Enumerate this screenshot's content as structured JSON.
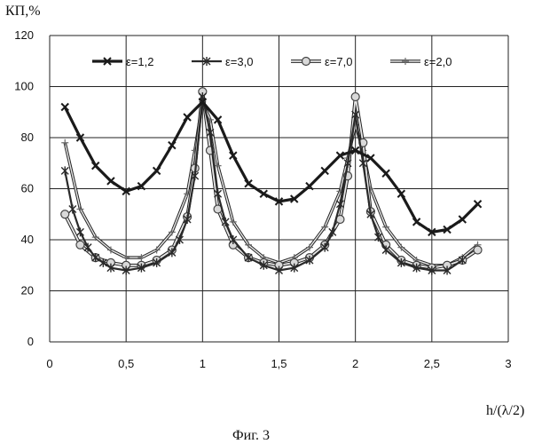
{
  "chart_data": {
    "type": "line",
    "ylabel": "КП,%",
    "xlabel": "h/(λ/2)",
    "caption": "Фиг. 3",
    "xlim": [
      0,
      3
    ],
    "ylim": [
      0,
      120
    ],
    "x_ticks": [
      0,
      0.5,
      1,
      1.5,
      2,
      2.5,
      3
    ],
    "x_tick_labels": [
      "0",
      "0,5",
      "1",
      "1,5",
      "2",
      "2,5",
      "3"
    ],
    "y_ticks": [
      0,
      20,
      40,
      60,
      80,
      100,
      120
    ],
    "y_tick_labels": [
      "0",
      "20",
      "40",
      "60",
      "80",
      "100",
      "120"
    ],
    "grid": true,
    "legend_position": "top",
    "series": [
      {
        "name": "ε=1,2",
        "marker": "x",
        "color": "#1a1a1a",
        "x": [
          0.1,
          0.2,
          0.3,
          0.4,
          0.5,
          0.6,
          0.7,
          0.8,
          0.9,
          1.0,
          1.1,
          1.2,
          1.3,
          1.4,
          1.5,
          1.6,
          1.7,
          1.8,
          1.9,
          2.0,
          2.1,
          2.2,
          2.3,
          2.4,
          2.5,
          2.6,
          2.7,
          2.8
        ],
        "y": [
          92,
          80,
          69,
          63,
          59,
          61,
          67,
          77,
          88,
          94,
          87,
          73,
          62,
          58,
          55,
          56,
          61,
          67,
          73,
          75,
          72,
          66,
          58,
          47,
          43,
          44,
          48,
          54
        ]
      },
      {
        "name": "ε=3,0",
        "marker": "asterisk",
        "color": "#2a2a2a",
        "x": [
          0.1,
          0.15,
          0.2,
          0.25,
          0.3,
          0.35,
          0.4,
          0.5,
          0.6,
          0.7,
          0.8,
          0.85,
          0.9,
          0.95,
          1.0,
          1.05,
          1.1,
          1.15,
          1.2,
          1.3,
          1.4,
          1.5,
          1.6,
          1.7,
          1.8,
          1.85,
          1.9,
          1.95,
          2.0,
          2.05,
          2.1,
          2.15,
          2.2,
          2.3,
          2.4,
          2.5,
          2.6,
          2.7
        ],
        "y": [
          67,
          52,
          43,
          37,
          33,
          31,
          29,
          28,
          29,
          31,
          35,
          40,
          48,
          65,
          96,
          82,
          58,
          47,
          40,
          33,
          30,
          28,
          29,
          32,
          37,
          43,
          54,
          70,
          89,
          70,
          50,
          41,
          36,
          31,
          29,
          28,
          28,
          32
        ]
      },
      {
        "name": "ε=7,0",
        "marker": "circle",
        "color": "#555555",
        "x": [
          0.1,
          0.2,
          0.3,
          0.4,
          0.5,
          0.6,
          0.7,
          0.8,
          0.9,
          0.95,
          1.0,
          1.05,
          1.1,
          1.2,
          1.3,
          1.4,
          1.5,
          1.6,
          1.7,
          1.8,
          1.9,
          1.95,
          2.0,
          2.05,
          2.1,
          2.2,
          2.3,
          2.4,
          2.5,
          2.6,
          2.7,
          2.8
        ],
        "y": [
          50,
          38,
          33,
          31,
          30,
          30,
          32,
          36,
          49,
          68,
          98,
          75,
          52,
          38,
          33,
          31,
          30,
          31,
          33,
          38,
          48,
          65,
          96,
          78,
          51,
          38,
          32,
          30,
          29,
          30,
          32,
          36
        ]
      },
      {
        "name": "ε=2,0",
        "marker": "plus",
        "color": "#6a6a6a",
        "x": [
          0.1,
          0.2,
          0.3,
          0.4,
          0.5,
          0.6,
          0.7,
          0.8,
          0.9,
          0.95,
          1.0,
          1.05,
          1.1,
          1.2,
          1.3,
          1.4,
          1.5,
          1.6,
          1.7,
          1.8,
          1.9,
          1.95,
          2.0,
          2.05,
          2.1,
          2.2,
          2.3,
          2.4,
          2.5,
          2.6,
          2.7,
          2.8
        ],
        "y": [
          78,
          52,
          41,
          36,
          33,
          33,
          36,
          43,
          58,
          75,
          94,
          87,
          69,
          47,
          38,
          33,
          31,
          33,
          37,
          45,
          59,
          72,
          85,
          75,
          60,
          45,
          37,
          32,
          30,
          30,
          33,
          38
        ]
      }
    ]
  }
}
